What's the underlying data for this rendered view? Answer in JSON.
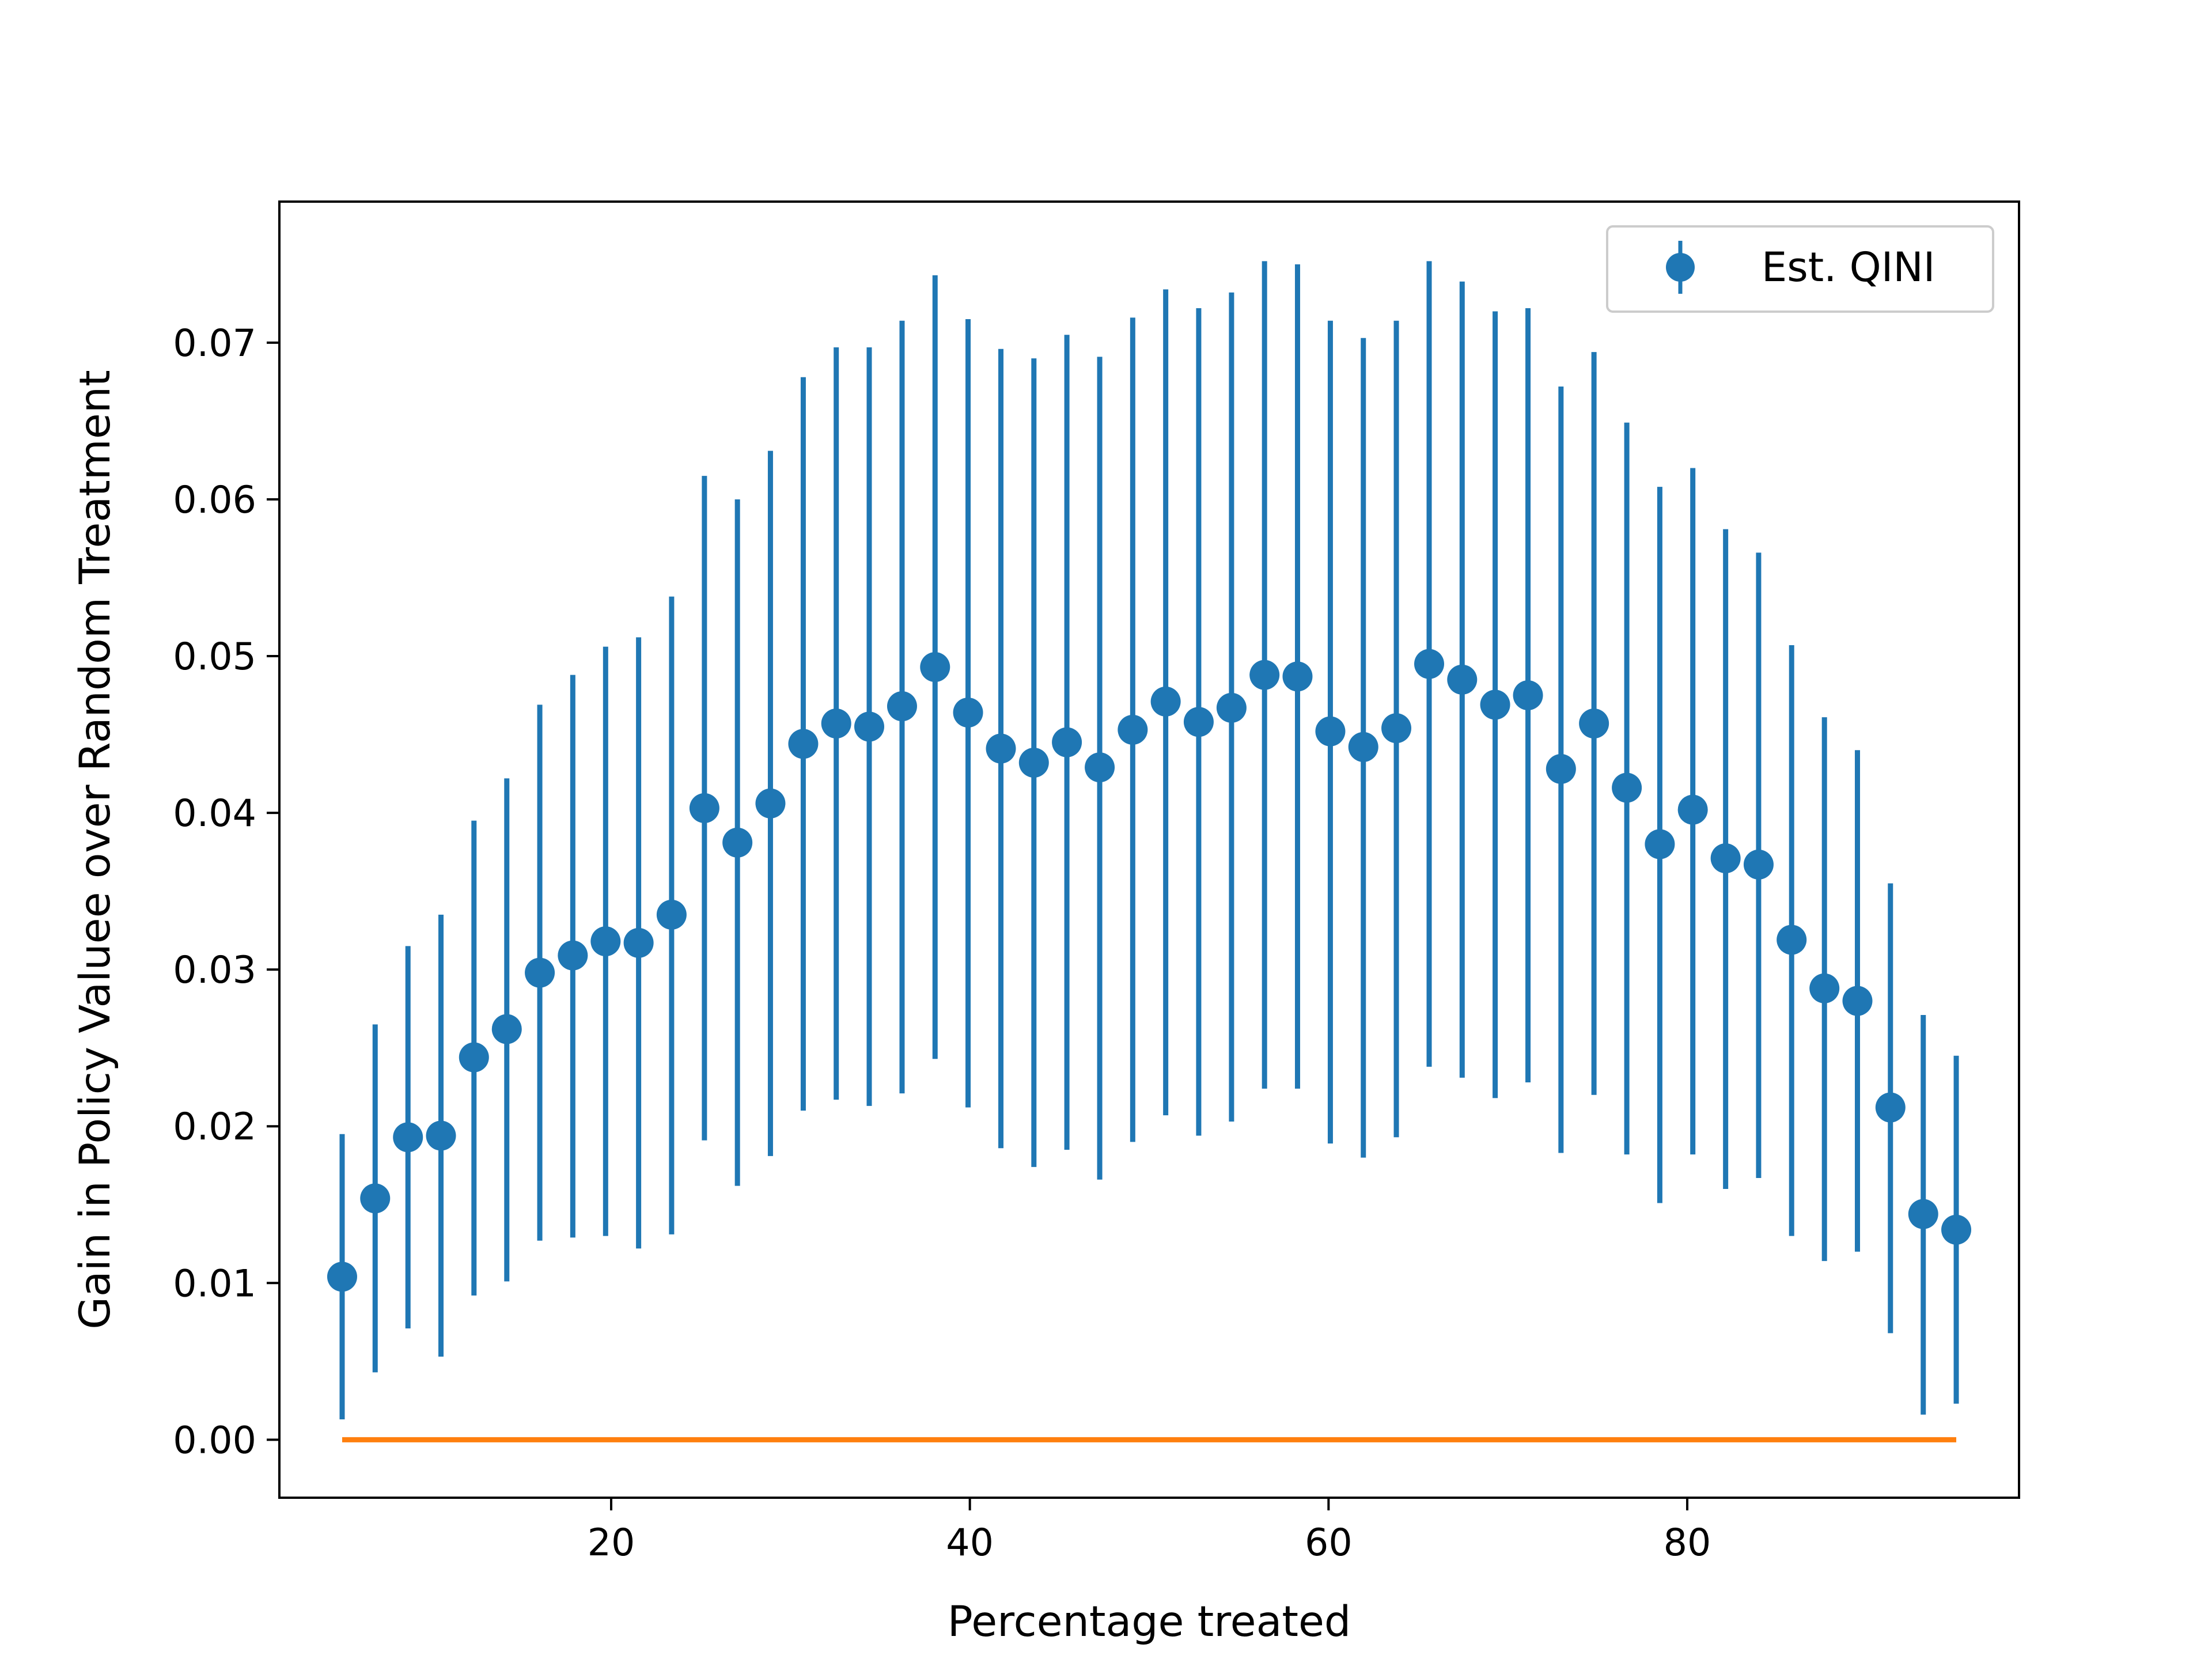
{
  "chart_data": {
    "type": "scatter",
    "xlabel": "Percentage treated",
    "ylabel": "Gain in Policy Valuee over Random Treatment",
    "xlim": [
      1.5,
      98.5
    ],
    "ylim": [
      -0.0037,
      0.079
    ],
    "xticks": [
      20,
      40,
      60,
      80
    ],
    "xtick_labels": [
      "20",
      "40",
      "60",
      "80"
    ],
    "yticks": [
      0.0,
      0.01,
      0.02,
      0.03,
      0.04,
      0.05,
      0.06,
      0.07
    ],
    "ytick_labels": [
      "0.00",
      "0.01",
      "0.02",
      "0.03",
      "0.04",
      "0.05",
      "0.06",
      "0.07"
    ],
    "grid": false,
    "legend_position": "top-right",
    "series": [
      {
        "name": "Est. QINI",
        "kind": "errorbar",
        "color": "#1f77b4",
        "x": [
          5.0,
          6.84,
          8.67,
          10.51,
          12.35,
          14.18,
          16.02,
          17.86,
          19.69,
          21.53,
          23.37,
          25.2,
          27.04,
          28.88,
          30.71,
          32.55,
          34.39,
          36.22,
          38.06,
          39.9,
          41.73,
          43.57,
          45.41,
          47.24,
          49.08,
          50.92,
          52.76,
          54.59,
          56.43,
          58.27,
          60.1,
          61.94,
          63.78,
          65.61,
          67.45,
          69.29,
          71.12,
          72.96,
          74.8,
          76.63,
          78.47,
          80.31,
          82.14,
          83.98,
          85.82,
          87.65,
          89.49,
          91.33,
          93.16,
          95.0
        ],
        "y": [
          0.0104,
          0.0154,
          0.0193,
          0.0194,
          0.0244,
          0.0262,
          0.0298,
          0.0309,
          0.0318,
          0.0317,
          0.0335,
          0.0403,
          0.0381,
          0.0406,
          0.0444,
          0.0457,
          0.0455,
          0.0468,
          0.0493,
          0.0464,
          0.0441,
          0.0432,
          0.0445,
          0.0429,
          0.0453,
          0.0471,
          0.0458,
          0.0467,
          0.0488,
          0.0487,
          0.0452,
          0.0442,
          0.0454,
          0.0495,
          0.0485,
          0.0469,
          0.0475,
          0.0428,
          0.0457,
          0.0416,
          0.038,
          0.0402,
          0.0371,
          0.0367,
          0.0319,
          0.0288,
          0.028,
          0.0212,
          0.0144,
          0.0134
        ],
        "y_low": [
          0.0013,
          0.0043,
          0.0071,
          0.0053,
          0.0092,
          0.0101,
          0.0127,
          0.0129,
          0.013,
          0.0122,
          0.0131,
          0.0191,
          0.0162,
          0.0181,
          0.021,
          0.0217,
          0.0213,
          0.0221,
          0.0243,
          0.0212,
          0.0186,
          0.0174,
          0.0185,
          0.0166,
          0.019,
          0.0207,
          0.0194,
          0.0203,
          0.0224,
          0.0224,
          0.0189,
          0.018,
          0.0193,
          0.0238,
          0.0231,
          0.0218,
          0.0228,
          0.0183,
          0.022,
          0.0182,
          0.0151,
          0.0182,
          0.016,
          0.0167,
          0.013,
          0.0114,
          0.012,
          0.0068,
          0.0016,
          0.0023
        ],
        "y_high": [
          0.0195,
          0.0265,
          0.0315,
          0.0335,
          0.0395,
          0.0422,
          0.0469,
          0.0488,
          0.0506,
          0.0512,
          0.0538,
          0.0615,
          0.06,
          0.0631,
          0.0678,
          0.0697,
          0.0697,
          0.0714,
          0.0743,
          0.0715,
          0.0696,
          0.069,
          0.0705,
          0.0691,
          0.0716,
          0.0734,
          0.0722,
          0.0732,
          0.0752,
          0.075,
          0.0714,
          0.0703,
          0.0714,
          0.0752,
          0.0739,
          0.072,
          0.0722,
          0.0672,
          0.0694,
          0.0649,
          0.0608,
          0.062,
          0.0581,
          0.0566,
          0.0507,
          0.0461,
          0.044,
          0.0355,
          0.0271,
          0.0245
        ]
      },
      {
        "kind": "line",
        "color": "#ff7f0e",
        "x": [
          5.0,
          95.0
        ],
        "y": [
          0.0,
          0.0
        ]
      }
    ]
  }
}
